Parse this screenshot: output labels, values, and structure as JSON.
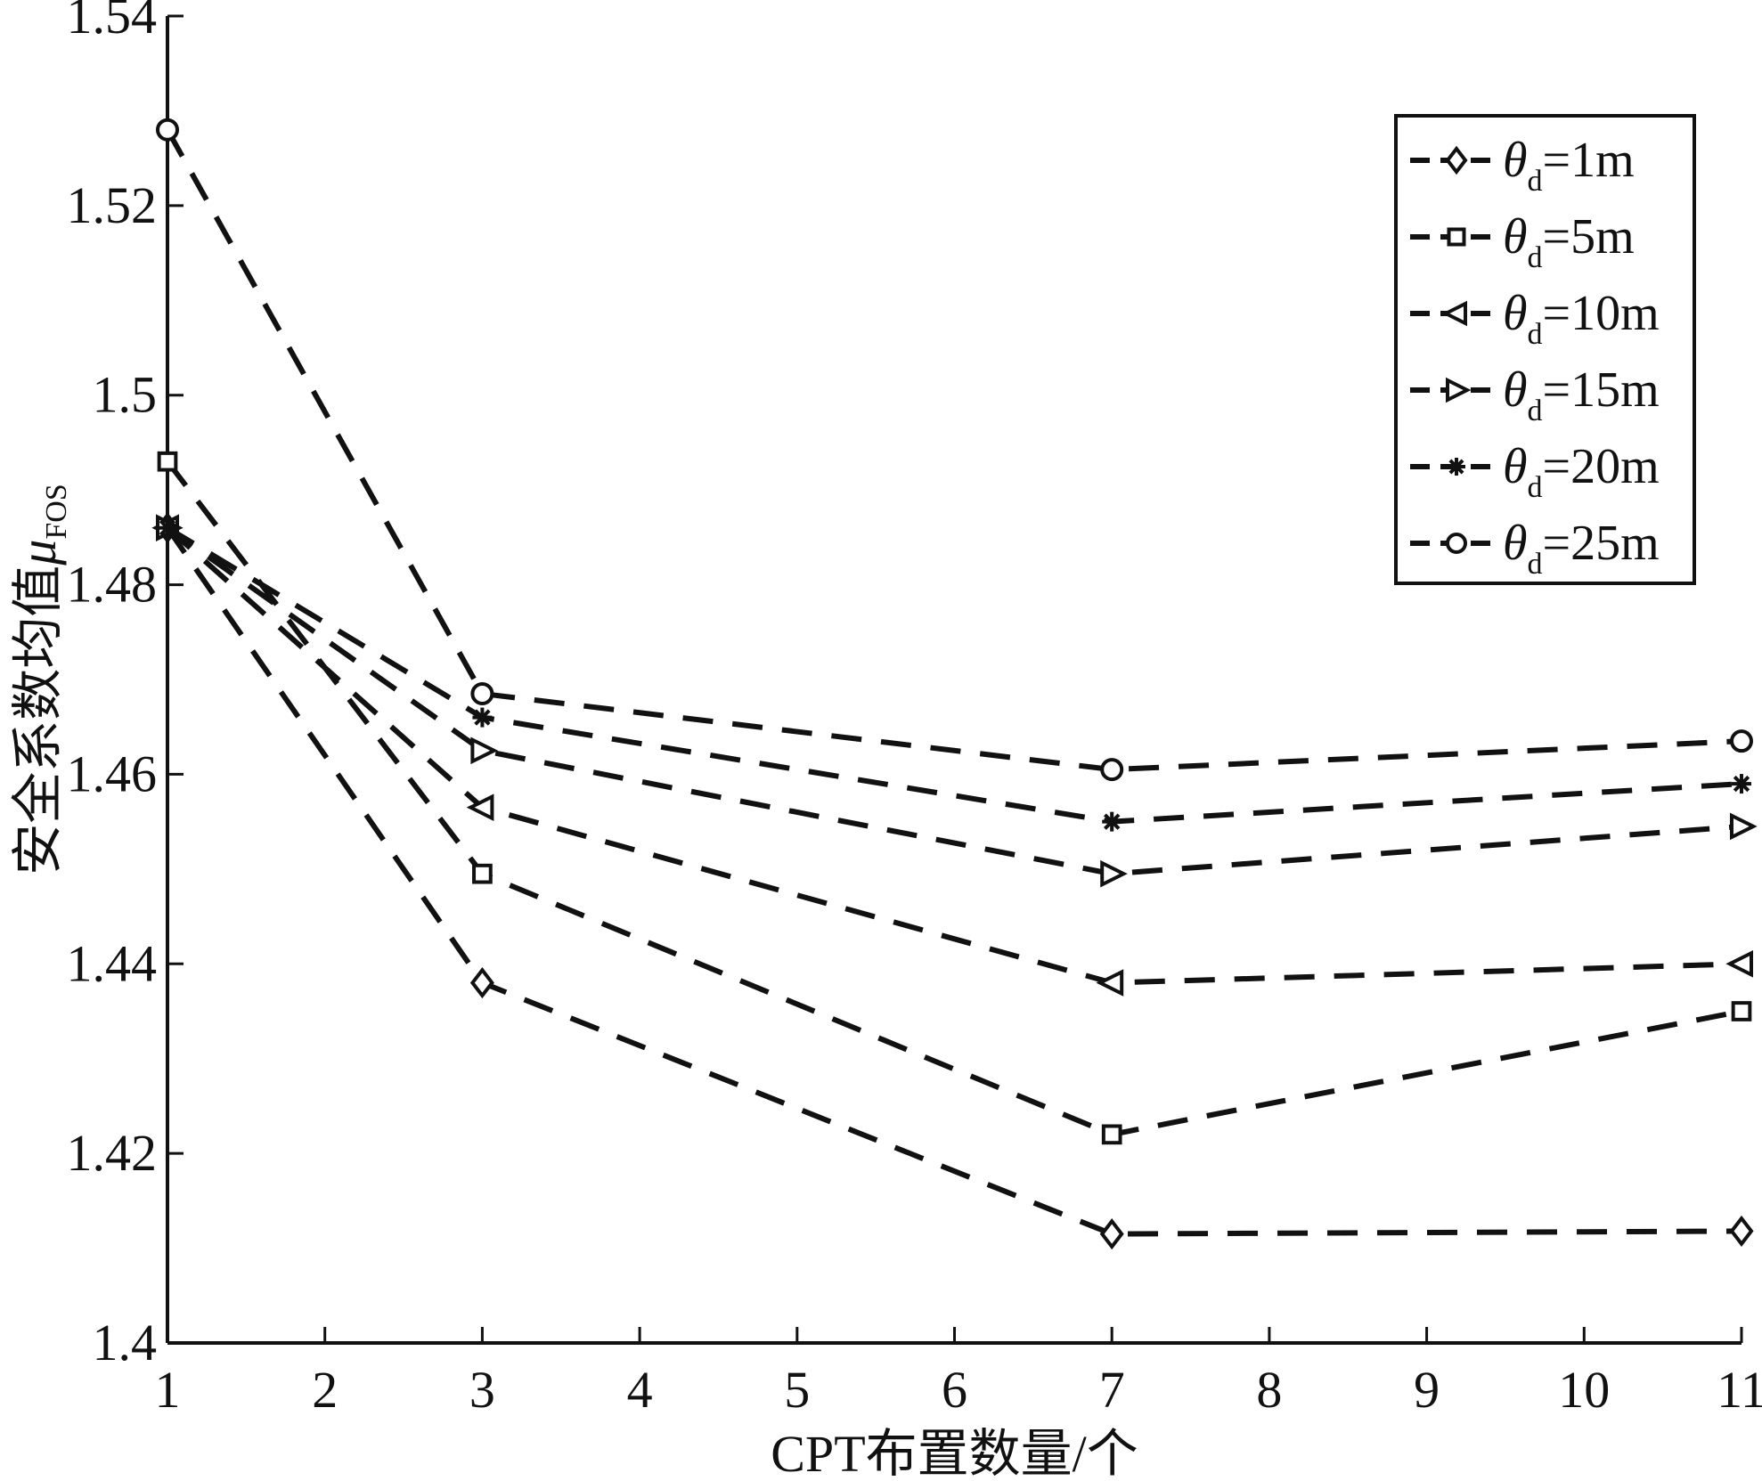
{
  "chart_data": {
    "type": "line",
    "xlabel": "CPT布置数量/个",
    "ylabel": {
      "main": "安全系数均值",
      "symbol": "μ",
      "sub": "FOS"
    },
    "xlim": [
      1,
      11
    ],
    "ylim": [
      1.4,
      1.54
    ],
    "xticks": [
      "1",
      "2",
      "3",
      "4",
      "5",
      "6",
      "7",
      "8",
      "9",
      "10",
      "11"
    ],
    "yticks": [
      "1.4",
      "1.42",
      "1.44",
      "1.46",
      "1.48",
      "1.5",
      "1.52",
      "1.54"
    ],
    "grid": false,
    "legend_position": "top-right",
    "x": [
      1,
      3,
      7,
      11
    ],
    "series": [
      {
        "name": "θd=1m",
        "sym": "θ",
        "sub": "d",
        "suffix": "=1m",
        "marker": "diamond",
        "values": [
          1.486,
          1.438,
          1.4115,
          1.4118
        ]
      },
      {
        "name": "θd=5m",
        "sym": "θ",
        "sub": "d",
        "suffix": "=5m",
        "marker": "square",
        "values": [
          1.493,
          1.4495,
          1.422,
          1.435
        ]
      },
      {
        "name": "θd=10m",
        "sym": "θ",
        "sub": "d",
        "suffix": "=10m",
        "marker": "triangle-left",
        "values": [
          1.486,
          1.4565,
          1.438,
          1.44
        ]
      },
      {
        "name": "θd=15m",
        "sym": "θ",
        "sub": "d",
        "suffix": "=15m",
        "marker": "triangle-right",
        "values": [
          1.486,
          1.4625,
          1.4495,
          1.4545
        ]
      },
      {
        "name": "θd=20m",
        "sym": "θ",
        "sub": "d",
        "suffix": "=20m",
        "marker": "star",
        "values": [
          1.486,
          1.466,
          1.455,
          1.459
        ]
      },
      {
        "name": "θd=25m",
        "sym": "θ",
        "sub": "d",
        "suffix": "=25m",
        "marker": "circle",
        "values": [
          1.528,
          1.4685,
          1.4605,
          1.4635
        ]
      }
    ]
  }
}
